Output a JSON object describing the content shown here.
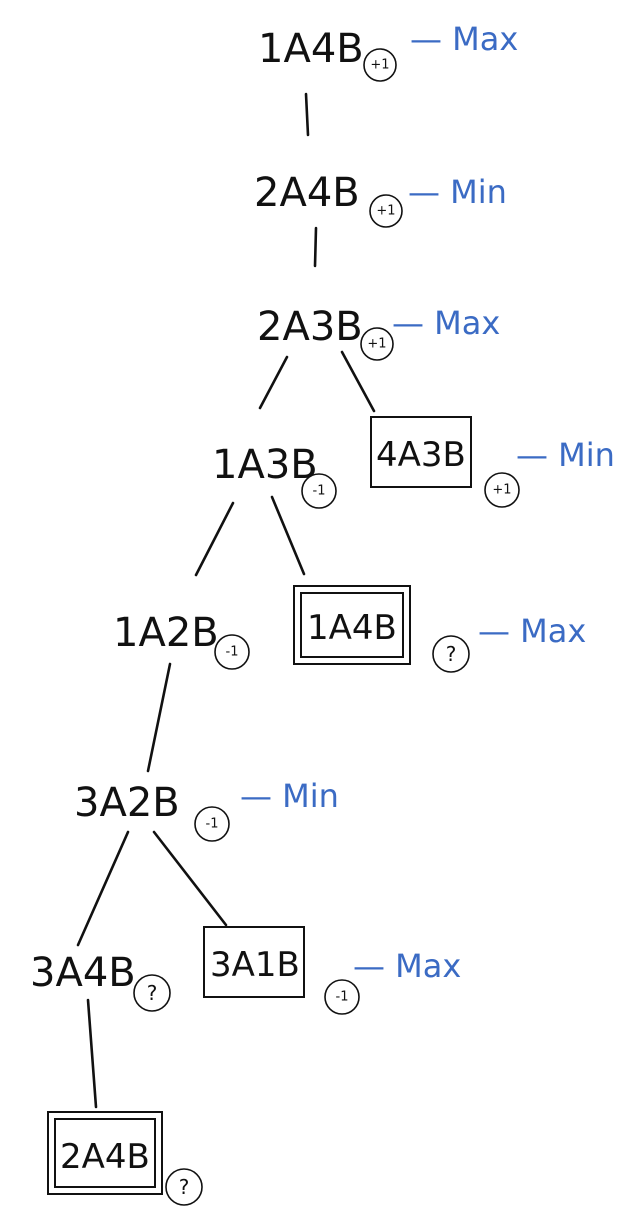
{
  "nodes": [
    {
      "id": "n1",
      "label": "1A4B",
      "value": "+1",
      "role": "— Max",
      "terminal": "none"
    },
    {
      "id": "n2",
      "label": "2A4B",
      "value": "+1",
      "role": "— Min",
      "terminal": "none"
    },
    {
      "id": "n3",
      "label": "2A3B",
      "value": "+1",
      "role": "— Max",
      "terminal": "none"
    },
    {
      "id": "n4",
      "label": "1A3B",
      "value": "-1",
      "role": "",
      "terminal": "none"
    },
    {
      "id": "n5",
      "label": "4A3B",
      "value": "+1",
      "role": "— Min",
      "terminal": "single"
    },
    {
      "id": "n6",
      "label": "1A2B",
      "value": "-1",
      "role": "",
      "terminal": "none"
    },
    {
      "id": "n7",
      "label": "1A4B",
      "value": "?",
      "role": "— Max",
      "terminal": "double"
    },
    {
      "id": "n8",
      "label": "3A2B",
      "value": "-1",
      "role": "— Min",
      "terminal": "none"
    },
    {
      "id": "n9",
      "label": "3A4B",
      "value": "?",
      "role": "",
      "terminal": "none"
    },
    {
      "id": "n10",
      "label": "3A1B",
      "value": "-1",
      "role": "— Max",
      "terminal": "single"
    },
    {
      "id": "n11",
      "label": "2A4B",
      "value": "?",
      "role": "",
      "terminal": "double"
    }
  ],
  "edges": [
    {
      "from": "n1",
      "to": "n2"
    },
    {
      "from": "n2",
      "to": "n3"
    },
    {
      "from": "n3",
      "to": "n4"
    },
    {
      "from": "n3",
      "to": "n5"
    },
    {
      "from": "n4",
      "to": "n6"
    },
    {
      "from": "n4",
      "to": "n7"
    },
    {
      "from": "n6",
      "to": "n8"
    },
    {
      "from": "n8",
      "to": "n9"
    },
    {
      "from": "n8",
      "to": "n10"
    },
    {
      "from": "n9",
      "to": "n11"
    }
  ]
}
